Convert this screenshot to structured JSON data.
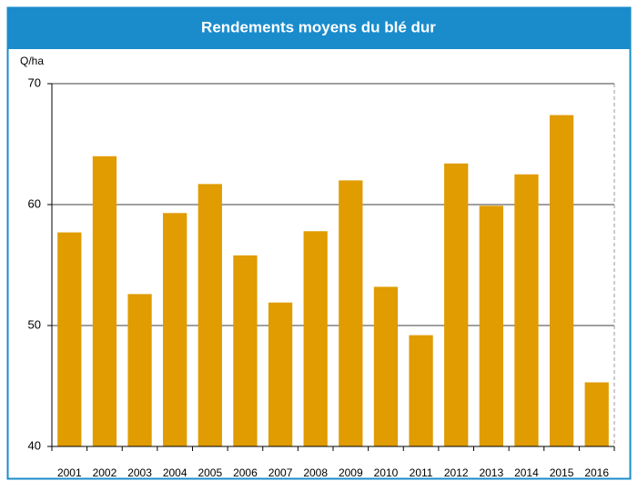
{
  "chart_data": {
    "type": "bar",
    "title": "Rendements moyens du blé dur",
    "y_label": "Q/ha",
    "categories": [
      "2001",
      "2002",
      "2003",
      "2004",
      "2005",
      "2006",
      "2007",
      "2008",
      "2009",
      "2010",
      "2011",
      "2012",
      "2013",
      "2014",
      "2015",
      "2016"
    ],
    "values": [
      57.7,
      64.0,
      52.6,
      59.3,
      61.7,
      55.8,
      51.9,
      57.8,
      62.0,
      53.2,
      49.2,
      63.4,
      59.9,
      62.5,
      67.4,
      45.3
    ],
    "color": "#e09c00",
    "ylim": [
      40,
      70
    ],
    "yticks": [
      40,
      50,
      60,
      70
    ],
    "grid": true
  }
}
